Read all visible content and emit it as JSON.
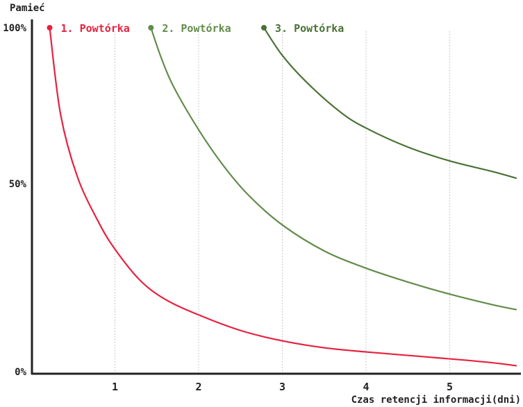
{
  "chart_data": {
    "type": "line",
    "title": "",
    "ylabel": "Pamieć",
    "xlabel": "Czas retencji informacji(dni)",
    "xlim": [
      0,
      5.8
    ],
    "ylim": [
      0,
      100
    ],
    "x_ticks": [
      "1",
      "2",
      "3",
      "4",
      "5"
    ],
    "y_ticks": [
      "100%",
      "50%",
      "0%"
    ],
    "grid": "vertical dotted at x ticks",
    "axis_color": "#222222",
    "series": [
      {
        "name": "1. Powtórka",
        "color": "#e8203e",
        "points": [
          [
            0.22,
            100
          ],
          [
            0.35,
            75
          ],
          [
            0.55,
            57
          ],
          [
            0.8,
            44
          ],
          [
            1.0,
            36
          ],
          [
            1.3,
            27
          ],
          [
            1.6,
            21.5
          ],
          [
            2.0,
            17
          ],
          [
            2.5,
            12.5
          ],
          [
            3.0,
            9.5
          ],
          [
            3.5,
            7.5
          ],
          [
            4.0,
            6.3
          ],
          [
            4.5,
            5.3
          ],
          [
            5.0,
            4.3
          ],
          [
            5.5,
            3.2
          ],
          [
            5.8,
            2.3
          ]
        ]
      },
      {
        "name": "2. Powtórka",
        "color": "#628c4a",
        "points": [
          [
            1.43,
            100
          ],
          [
            1.55,
            91.5
          ],
          [
            1.7,
            83
          ],
          [
            2.0,
            70.5
          ],
          [
            2.3,
            60
          ],
          [
            2.6,
            51.5
          ],
          [
            3.0,
            43
          ],
          [
            3.5,
            35.5
          ],
          [
            4.0,
            30.5
          ],
          [
            4.5,
            26.5
          ],
          [
            5.0,
            23
          ],
          [
            5.5,
            20
          ],
          [
            5.8,
            18.5
          ]
        ]
      },
      {
        "name": "3. Powtórka",
        "color": "#4a7235",
        "points": [
          [
            2.78,
            100
          ],
          [
            3.0,
            92
          ],
          [
            3.3,
            84
          ],
          [
            3.7,
            75.5
          ],
          [
            4.0,
            71
          ],
          [
            4.5,
            65.5
          ],
          [
            5.0,
            61.5
          ],
          [
            5.5,
            58.5
          ],
          [
            5.8,
            56.5
          ]
        ]
      }
    ]
  }
}
